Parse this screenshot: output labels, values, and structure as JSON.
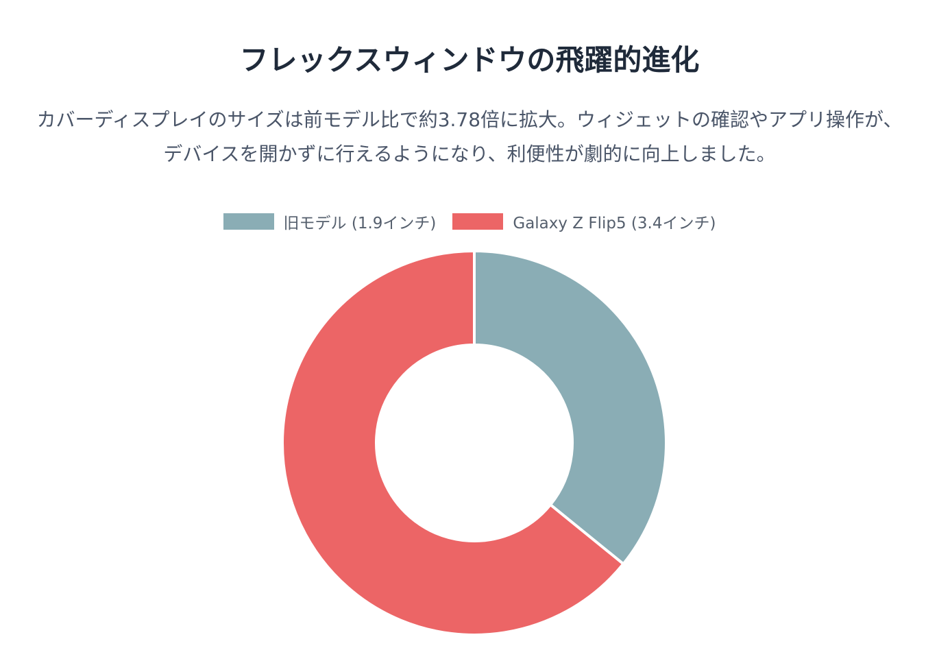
{
  "header": {
    "title": "フレックスウィンドウの飛躍的進化",
    "description": "カバーディスプレイのサイズは前モデル比で約3.78倍に拡大。ウィジェットの確認やアプリ操作が、デバイスを開かずに行えるようになり、利便性が劇的に向上しました。"
  },
  "chart_data": {
    "type": "pie",
    "variant": "doughnut",
    "title": "",
    "legend_position": "top",
    "labels": [
      "旧モデル (1.9インチ)",
      "Galaxy Z Flip5 (3.4インチ)"
    ],
    "values": [
      1.9,
      3.4
    ],
    "colors": [
      "#8aadb5",
      "#ec6566"
    ]
  }
}
